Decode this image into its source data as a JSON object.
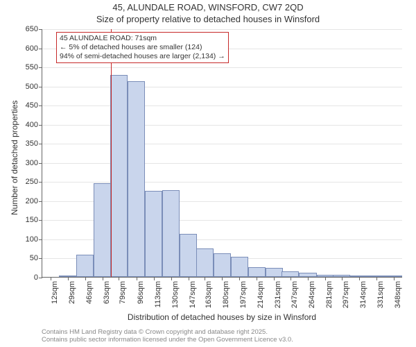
{
  "title_main": "45, ALUNDALE ROAD, WINSFORD, CW7 2QD",
  "title_sub": "Size of property relative to detached houses in Winsford",
  "ylabel": "Number of detached properties",
  "xlabel": "Distribution of detached houses by size in Winsford",
  "footer_line1": "Contains HM Land Registry data © Crown copyright and database right 2025.",
  "footer_line2": "Contains public sector information licensed under the Open Government Licence v3.0.",
  "annotation": {
    "line1": "45 ALUNDALE ROAD: 71sqm",
    "line2": "← 5% of detached houses are smaller (124)",
    "line3": "94% of semi-detached houses are larger (2,134) →"
  },
  "chart": {
    "type": "histogram",
    "background_color": "#ffffff",
    "grid_color": "#e5e5e5",
    "axis_color": "#666666",
    "bar_fill": "#c9d5ec",
    "bar_border": "#7a8db8",
    "ref_line_color": "#c62828",
    "ref_line_x": 71,
    "ylim": [
      0,
      650
    ],
    "ytick_step": 50,
    "x_ticks": [
      12,
      29,
      46,
      63,
      79,
      96,
      113,
      130,
      147,
      163,
      180,
      197,
      214,
      231,
      247,
      264,
      281,
      297,
      314,
      331,
      348
    ],
    "x_tick_suffix": "sqm",
    "x_data_min": 4,
    "x_data_max": 357,
    "bar_bin_width": 17,
    "bars": [
      {
        "x": 29,
        "count": 2
      },
      {
        "x": 46,
        "count": 58
      },
      {
        "x": 63,
        "count": 245
      },
      {
        "x": 79,
        "count": 528
      },
      {
        "x": 96,
        "count": 512
      },
      {
        "x": 113,
        "count": 225
      },
      {
        "x": 130,
        "count": 227
      },
      {
        "x": 147,
        "count": 112
      },
      {
        "x": 163,
        "count": 75
      },
      {
        "x": 180,
        "count": 62
      },
      {
        "x": 197,
        "count": 52
      },
      {
        "x": 214,
        "count": 26
      },
      {
        "x": 231,
        "count": 23
      },
      {
        "x": 247,
        "count": 15
      },
      {
        "x": 264,
        "count": 11
      },
      {
        "x": 281,
        "count": 5
      },
      {
        "x": 297,
        "count": 6
      },
      {
        "x": 314,
        "count": 2
      },
      {
        "x": 331,
        "count": 3
      },
      {
        "x": 348,
        "count": 3
      }
    ],
    "title_fontsize": 13,
    "label_fontsize": 12,
    "tick_fontsize": 11
  }
}
